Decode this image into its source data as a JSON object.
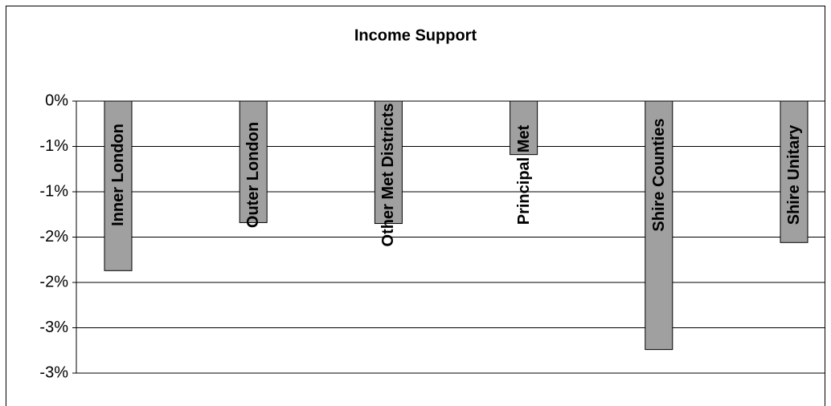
{
  "chart_data": {
    "type": "bar",
    "title": "Income Support",
    "categories": [
      "Inner London",
      "Outer London",
      "Other Met Districts",
      "Principal Met",
      "Shire Counties",
      "Shire Unitary"
    ],
    "values": [
      -1.87,
      -1.34,
      -1.35,
      -0.59,
      -2.74,
      -1.56
    ],
    "color": "#a0a0a0",
    "ylim": [
      -3,
      0
    ],
    "yticks": [
      {
        "value": 0,
        "label": "0%"
      },
      {
        "value": -0.5,
        "label": "-1%"
      },
      {
        "value": -1,
        "label": "-1%"
      },
      {
        "value": -1.5,
        "label": "-2%"
      },
      {
        "value": -2,
        "label": "-2%"
      },
      {
        "value": -2.5,
        "label": "-3%"
      },
      {
        "value": -3,
        "label": "-3%"
      }
    ],
    "grid": true
  }
}
